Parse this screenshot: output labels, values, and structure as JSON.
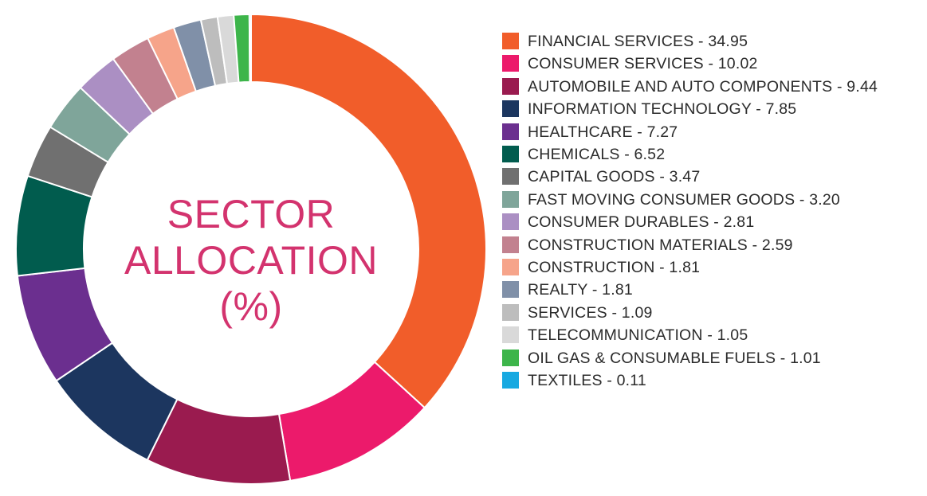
{
  "chart_data": {
    "type": "pie",
    "title": "SECTOR ALLOCATION (%)",
    "title_lines": [
      "SECTOR",
      "ALLOCATION",
      "(%)"
    ],
    "donut": true,
    "legend_position": "right",
    "slices": [
      {
        "name": "FINANCIAL SERVICES",
        "value": 34.95,
        "label": "FINANCIAL SERVICES - 34.95",
        "color": "#f15d2a"
      },
      {
        "name": "CONSUMER SERVICES",
        "value": 10.02,
        "label": "CONSUMER SERVICES - 10.02",
        "color": "#ec1a6b"
      },
      {
        "name": "AUTOMOBILE AND AUTO COMPONENTS",
        "value": 9.44,
        "label": "AUTOMOBILE AND AUTO COMPONENTS - 9.44",
        "color": "#9a1b4f"
      },
      {
        "name": "INFORMATION TECHNOLOGY",
        "value": 7.85,
        "label": "INFORMATION TECHNOLOGY - 7.85",
        "color": "#1c365f"
      },
      {
        "name": "HEALTHCARE",
        "value": 7.27,
        "label": "HEALTHCARE - 7.27",
        "color": "#6b2f8f"
      },
      {
        "name": "CHEMICALS",
        "value": 6.52,
        "label": "CHEMICALS - 6.52",
        "color": "#015c4e"
      },
      {
        "name": "CAPITAL GOODS",
        "value": 3.47,
        "label": "CAPITAL GOODS - 3.47",
        "color": "#707070"
      },
      {
        "name": "FAST MOVING CONSUMER GOODS",
        "value": 3.2,
        "label": "FAST MOVING CONSUMER GOODS - 3.20",
        "color": "#7fa59a"
      },
      {
        "name": "CONSUMER DURABLES",
        "value": 2.81,
        "label": "CONSUMER DURABLES - 2.81",
        "color": "#ab8fc3"
      },
      {
        "name": "CONSTRUCTION MATERIALS",
        "value": 2.59,
        "label": "CONSTRUCTION MATERIALS - 2.59",
        "color": "#c2818f"
      },
      {
        "name": "CONSTRUCTION",
        "value": 1.81,
        "label": "CONSTRUCTION - 1.81",
        "color": "#f6a48a"
      },
      {
        "name": "REALTY",
        "value": 1.81,
        "label": "REALTY - 1.81",
        "color": "#8090a8"
      },
      {
        "name": "SERVICES",
        "value": 1.09,
        "label": "SERVICES - 1.09",
        "color": "#bdbdbd"
      },
      {
        "name": "TELECOMMUNICATION",
        "value": 1.05,
        "label": "TELECOMMUNICATION - 1.05",
        "color": "#d9d9d9"
      },
      {
        "name": "OIL GAS & CONSUMABLE FUELS",
        "value": 1.01,
        "label": "OIL GAS & CONSUMABLE FUELS  - 1.01",
        "color": "#3db54a"
      },
      {
        "name": "TEXTILES",
        "value": 0.11,
        "label": "TEXTILES - 0.11",
        "color": "#17a9e1"
      }
    ]
  }
}
